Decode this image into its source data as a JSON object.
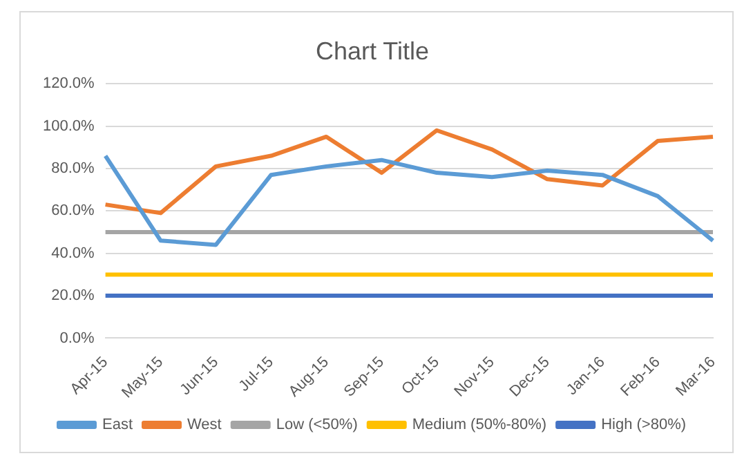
{
  "chart_data": {
    "type": "line",
    "title": "Chart Title",
    "categories": [
      "Apr-15",
      "May-15",
      "Jun-15",
      "Jul-15",
      "Aug-15",
      "Sep-15",
      "Oct-15",
      "Nov-15",
      "Dec-15",
      "Jan-16",
      "Feb-16",
      "Mar-16"
    ],
    "series": [
      {
        "name": "East",
        "color": "#5b9bd5",
        "values": [
          0.86,
          0.46,
          0.44,
          0.77,
          0.81,
          0.84,
          0.78,
          0.76,
          0.79,
          0.77,
          0.67,
          0.46
        ]
      },
      {
        "name": "West",
        "color": "#ed7d31",
        "values": [
          0.63,
          0.59,
          0.81,
          0.86,
          0.95,
          0.78,
          0.98,
          0.89,
          0.75,
          0.72,
          0.93,
          0.95
        ]
      },
      {
        "name": "Low (<50%)",
        "color": "#a5a5a5",
        "values": [
          0.5,
          0.5,
          0.5,
          0.5,
          0.5,
          0.5,
          0.5,
          0.5,
          0.5,
          0.5,
          0.5,
          0.5
        ]
      },
      {
        "name": "Medium (50%-80%)",
        "color": "#ffc000",
        "values": [
          0.3,
          0.3,
          0.3,
          0.3,
          0.3,
          0.3,
          0.3,
          0.3,
          0.3,
          0.3,
          0.3,
          0.3
        ]
      },
      {
        "name": "High (>80%)",
        "color": "#4472c4",
        "values": [
          0.2,
          0.2,
          0.2,
          0.2,
          0.2,
          0.2,
          0.2,
          0.2,
          0.2,
          0.2,
          0.2,
          0.2
        ]
      }
    ],
    "ylim": [
      0,
      1.2
    ],
    "yticks": [
      {
        "value": 0,
        "label": "0.0%"
      },
      {
        "value": 0.2,
        "label": "20.0%"
      },
      {
        "value": 0.4,
        "label": "40.0%"
      },
      {
        "value": 0.6,
        "label": "60.0%"
      },
      {
        "value": 0.8,
        "label": "80.0%"
      },
      {
        "value": 1,
        "label": "100.0%"
      },
      {
        "value": 1.2,
        "label": "120.0%"
      }
    ],
    "grid": "y",
    "legend": "bottom",
    "marker": "none",
    "line_style": "solid"
  }
}
